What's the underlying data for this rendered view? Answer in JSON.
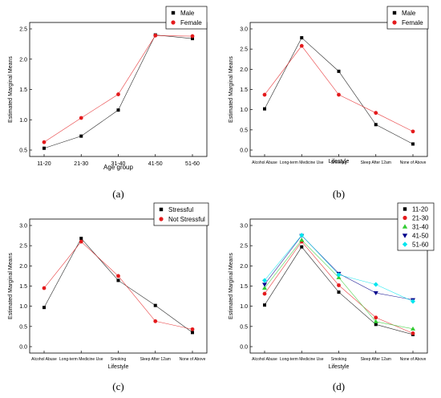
{
  "chart_data": [
    {
      "type": "line",
      "panel_label": "(a)",
      "xlabel": "Age group",
      "ylabel": "Estimated Marginal Means",
      "categories": [
        "11-20",
        "21-30",
        "31-40",
        "41-50",
        "51-60"
      ],
      "ylim": [
        0.5,
        2.5
      ],
      "yticks": [
        "0.5",
        "1.0",
        "1.5",
        "2.0",
        "2.5"
      ],
      "legend_position": "top-right",
      "series": [
        {
          "name": "Male",
          "color": "#000000",
          "marker": "square",
          "values": [
            0.53,
            0.73,
            1.16,
            2.4,
            2.34
          ]
        },
        {
          "name": "Female",
          "color": "#e41a1c",
          "marker": "circle",
          "values": [
            0.63,
            1.03,
            1.42,
            2.39,
            2.38
          ]
        }
      ]
    },
    {
      "type": "line",
      "panel_label": "(b)",
      "xlabel": "Lifestyle",
      "ylabel": "Estimated Marginal Means",
      "categories": [
        "Alcohol Abuse",
        "Long-term Medicine Use",
        "Smoking",
        "Sleep After 12am",
        "None of Above"
      ],
      "ylim": [
        0.0,
        3.0
      ],
      "yticks": [
        "0.0",
        "0.5",
        "1.0",
        "1.5",
        "2.0",
        "2.5",
        "3.0"
      ],
      "legend_position": "top-right",
      "series": [
        {
          "name": "Male",
          "color": "#000000",
          "marker": "square",
          "values": [
            1.02,
            2.78,
            1.95,
            0.63,
            0.15
          ]
        },
        {
          "name": "Female",
          "color": "#e41a1c",
          "marker": "circle",
          "values": [
            1.37,
            2.58,
            1.37,
            0.92,
            0.46
          ]
        }
      ]
    },
    {
      "type": "line",
      "panel_label": "(c)",
      "xlabel": "Lifestyle",
      "ylabel": "Estimated Marginal Means",
      "categories": [
        "Alcohol Abuse",
        "Long-term Medicine Use",
        "Smoking",
        "Sleep After 12am",
        "None of Above"
      ],
      "ylim": [
        0.0,
        3.0
      ],
      "yticks": [
        "0.0",
        "0.5",
        "1.0",
        "1.5",
        "2.0",
        "2.5",
        "3.0"
      ],
      "legend_position": "top-right",
      "series": [
        {
          "name": "Stressful",
          "color": "#000000",
          "marker": "square",
          "values": [
            0.97,
            2.68,
            1.64,
            1.02,
            0.35
          ]
        },
        {
          "name": "Not Stressful",
          "color": "#e41a1c",
          "marker": "circle",
          "values": [
            1.45,
            2.6,
            1.75,
            0.63,
            0.43
          ]
        }
      ]
    },
    {
      "type": "line",
      "panel_label": "(d)",
      "xlabel": "Lifestyle",
      "ylabel": "Estimated Marginal Means",
      "categories": [
        "Alcohol Abuse",
        "Long-term Medicine Use",
        "Smoking",
        "Sleep After 12am",
        "None of Above"
      ],
      "ylim": [
        0.0,
        3.0
      ],
      "yticks": [
        "0.0",
        "0.5",
        "1.0",
        "1.5",
        "2.0",
        "2.5",
        "3.0"
      ],
      "legend_position": "top-right",
      "series": [
        {
          "name": "11-20",
          "color": "#000000",
          "marker": "square",
          "values": [
            1.03,
            2.47,
            1.35,
            0.55,
            0.3
          ]
        },
        {
          "name": "21-30",
          "color": "#e41a1c",
          "marker": "circle",
          "values": [
            1.31,
            2.6,
            1.52,
            0.72,
            0.33
          ]
        },
        {
          "name": "31-40",
          "color": "#33cc33",
          "marker": "triangle-up",
          "values": [
            1.45,
            2.64,
            1.71,
            0.62,
            0.44
          ]
        },
        {
          "name": "41-50",
          "color": "#00008b",
          "marker": "triangle-down",
          "values": [
            1.54,
            2.75,
            1.81,
            1.33,
            1.16
          ]
        },
        {
          "name": "51-60",
          "color": "#00e5ee",
          "marker": "diamond",
          "values": [
            1.64,
            2.76,
            1.78,
            1.54,
            1.12
          ]
        }
      ]
    }
  ]
}
